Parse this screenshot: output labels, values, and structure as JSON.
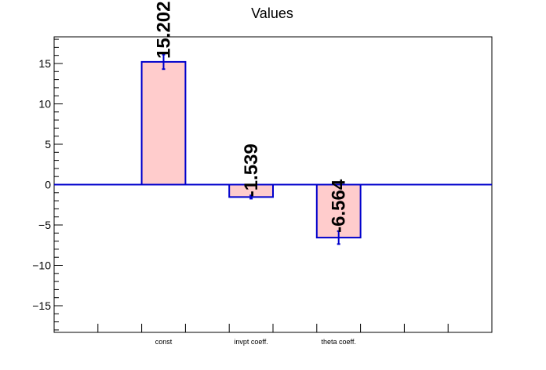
{
  "chart_data": {
    "type": "bar",
    "title": "Values",
    "xlabel": "",
    "ylabel": "",
    "categories": [
      "const",
      "invpt coeff.",
      "theta coeff."
    ],
    "values": [
      15.202,
      -1.539,
      -6.564
    ],
    "value_labels": [
      "15.202",
      "-1.539",
      "-6.564"
    ],
    "errors": [
      0.9,
      0.2,
      0.8
    ],
    "ylim": [
      -18.3,
      18.3
    ],
    "yticks": [
      -15,
      -10,
      -5,
      0,
      5,
      10,
      15
    ],
    "ytick_labels": [
      "−15",
      "−10",
      "−5",
      "0",
      "5",
      "10",
      "15"
    ],
    "grid": false,
    "colors": {
      "bar_fill": "#ffcccc",
      "bar_edge": "#0000cc",
      "zero_line": "#0000cc",
      "error_bar": "#0000cc",
      "axis": "#000000"
    }
  }
}
